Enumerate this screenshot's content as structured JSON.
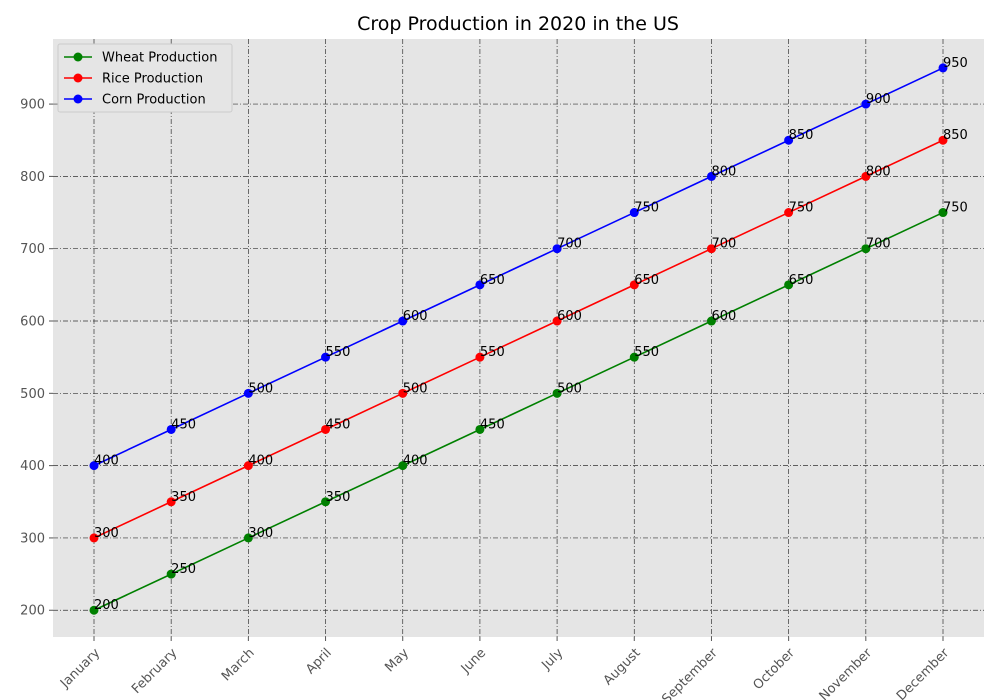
{
  "chart_data": {
    "type": "line",
    "title": "Crop Production in 2020 in the US",
    "xlabel": "",
    "ylabel": "",
    "categories": [
      "January",
      "February",
      "March",
      "April",
      "May",
      "June",
      "July",
      "August",
      "September",
      "October",
      "November",
      "December"
    ],
    "ylim": [
      163,
      990
    ],
    "yticks": [
      200,
      300,
      400,
      500,
      600,
      700,
      800,
      900
    ],
    "grid": true,
    "legend_position": "upper-left",
    "series": [
      {
        "name": "Wheat Production",
        "color": "#008000",
        "values": [
          200,
          250,
          300,
          350,
          400,
          450,
          500,
          550,
          600,
          650,
          700,
          750
        ]
      },
      {
        "name": "Rice Production",
        "color": "#ff0000",
        "values": [
          300,
          350,
          400,
          450,
          500,
          550,
          600,
          650,
          700,
          750,
          800,
          850
        ]
      },
      {
        "name": "Corn Production",
        "color": "#0000ff",
        "values": [
          400,
          450,
          500,
          550,
          600,
          650,
          700,
          750,
          800,
          850,
          900,
          950
        ]
      }
    ]
  }
}
